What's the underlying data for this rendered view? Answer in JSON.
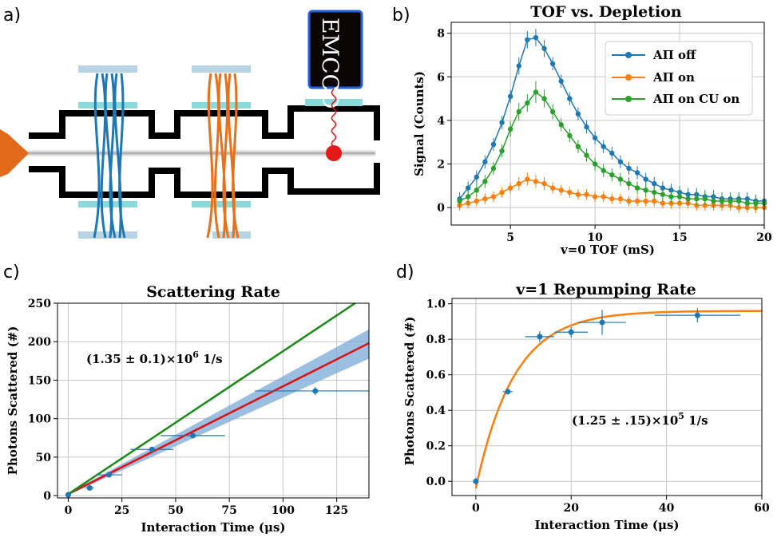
{
  "panels": {
    "a": "a)",
    "b": "b)",
    "c": "c)",
    "d": "d)"
  },
  "diagram": {
    "detector_label": "EMCCD",
    "colors": {
      "blue_beam": "#1f77b4",
      "orange_beam": "#e8701a",
      "red_atom": "#dd1111",
      "mount": "#b8d4e3",
      "cyan_window": "#8ad9db",
      "source_arrow": "#e06a1a"
    }
  },
  "chart_data": [
    {
      "id": "b",
      "type": "line",
      "title": "TOF vs. Depletion",
      "xlabel": "v=0 TOF (mS)",
      "ylabel": "Signal (Counts)",
      "xlim": [
        1.5,
        20
      ],
      "ylim": [
        -0.8,
        8.5
      ],
      "xticks": [
        5,
        10,
        15,
        20
      ],
      "yticks": [
        0,
        2,
        4,
        6,
        8
      ],
      "grid": true,
      "legend_position": "top-right",
      "series": [
        {
          "name": "AΠ off",
          "color": "#1f77b4",
          "x": [
            2.0,
            2.5,
            3.0,
            3.5,
            4.0,
            4.5,
            5.0,
            5.5,
            6.0,
            6.5,
            7.0,
            7.5,
            8.0,
            8.5,
            9.0,
            9.5,
            10.0,
            10.5,
            11.0,
            11.5,
            12.0,
            12.5,
            13.0,
            13.5,
            14.0,
            14.5,
            15.0,
            15.5,
            16.0,
            16.5,
            17.0,
            17.5,
            18.0,
            18.5,
            19.0,
            19.5,
            20.0
          ],
          "y": [
            0.4,
            0.9,
            1.4,
            2.1,
            2.9,
            3.9,
            5.1,
            6.5,
            7.7,
            7.8,
            7.3,
            6.6,
            5.8,
            5.0,
            4.3,
            3.7,
            3.2,
            2.8,
            2.5,
            2.1,
            1.8,
            1.6,
            1.3,
            1.1,
            0.9,
            0.8,
            0.7,
            0.6,
            0.6,
            0.5,
            0.5,
            0.4,
            0.4,
            0.4,
            0.4,
            0.3,
            0.3
          ],
          "err": [
            0.3,
            0.3,
            0.3,
            0.3,
            0.3,
            0.3,
            0.3,
            0.4,
            0.4,
            0.4,
            0.4,
            0.3,
            0.3,
            0.3,
            0.3,
            0.3,
            0.3,
            0.3,
            0.3,
            0.3,
            0.3,
            0.3,
            0.3,
            0.3,
            0.3,
            0.3,
            0.3,
            0.3,
            0.3,
            0.3,
            0.3,
            0.3,
            0.3,
            0.3,
            0.3,
            0.3,
            0.3
          ]
        },
        {
          "name": "AΠ on",
          "color": "#ff7f0e",
          "x": [
            2.0,
            2.5,
            3.0,
            3.5,
            4.0,
            4.5,
            5.0,
            5.5,
            6.0,
            6.5,
            7.0,
            7.5,
            8.0,
            8.5,
            9.0,
            9.5,
            10.0,
            10.5,
            11.0,
            11.5,
            12.0,
            12.5,
            13.0,
            13.5,
            14.0,
            14.5,
            15.0,
            15.5,
            16.0,
            16.5,
            17.0,
            17.5,
            18.0,
            18.5,
            19.0,
            19.5,
            20.0
          ],
          "y": [
            0.1,
            0.2,
            0.3,
            0.4,
            0.5,
            0.7,
            0.9,
            1.1,
            1.3,
            1.2,
            1.1,
            0.9,
            0.8,
            0.7,
            0.6,
            0.6,
            0.5,
            0.5,
            0.4,
            0.4,
            0.3,
            0.3,
            0.3,
            0.3,
            0.2,
            0.2,
            0.2,
            0.2,
            0.1,
            0.1,
            0.1,
            0.1,
            0.1,
            0.0,
            0.0,
            0.0,
            0.0
          ],
          "err": [
            0.25,
            0.25,
            0.25,
            0.25,
            0.25,
            0.25,
            0.25,
            0.3,
            0.3,
            0.3,
            0.3,
            0.25,
            0.25,
            0.25,
            0.25,
            0.25,
            0.25,
            0.25,
            0.25,
            0.25,
            0.25,
            0.25,
            0.25,
            0.25,
            0.25,
            0.25,
            0.25,
            0.25,
            0.25,
            0.25,
            0.25,
            0.25,
            0.25,
            0.25,
            0.25,
            0.25,
            0.25
          ]
        },
        {
          "name": "AΠ on CU on",
          "color": "#2ca02c",
          "x": [
            2.0,
            2.5,
            3.0,
            3.5,
            4.0,
            4.5,
            5.0,
            5.5,
            6.0,
            6.5,
            7.0,
            7.5,
            8.0,
            8.5,
            9.0,
            9.5,
            10.0,
            10.5,
            11.0,
            11.5,
            12.0,
            12.5,
            13.0,
            13.5,
            14.0,
            14.5,
            15.0,
            15.5,
            16.0,
            16.5,
            17.0,
            17.5,
            18.0,
            18.5,
            19.0,
            19.5,
            20.0
          ],
          "y": [
            0.3,
            0.5,
            0.8,
            1.2,
            1.8,
            2.6,
            3.6,
            4.4,
            4.8,
            5.3,
            5.0,
            4.4,
            3.8,
            3.3,
            2.8,
            2.4,
            2.0,
            1.7,
            1.5,
            1.3,
            1.1,
            0.9,
            0.8,
            0.7,
            0.6,
            0.5,
            0.5,
            0.4,
            0.4,
            0.4,
            0.3,
            0.3,
            0.3,
            0.3,
            0.2,
            0.2,
            0.2
          ],
          "err": [
            0.3,
            0.3,
            0.3,
            0.3,
            0.3,
            0.3,
            0.35,
            0.4,
            0.4,
            0.5,
            0.4,
            0.35,
            0.3,
            0.3,
            0.3,
            0.3,
            0.3,
            0.3,
            0.3,
            0.3,
            0.3,
            0.3,
            0.3,
            0.3,
            0.3,
            0.3,
            0.3,
            0.3,
            0.3,
            0.3,
            0.3,
            0.3,
            0.3,
            0.3,
            0.3,
            0.3,
            0.3
          ]
        }
      ]
    },
    {
      "id": "c",
      "type": "scatter",
      "title": "Scattering Rate",
      "xlabel": "Interaction Time (μs)",
      "ylabel": "Photons Scattered (#)",
      "xlim": [
        -5,
        140
      ],
      "ylim": [
        -3,
        250
      ],
      "xticks": [
        0,
        25,
        50,
        75,
        100,
        125
      ],
      "yticks": [
        0,
        50,
        100,
        150,
        200,
        250
      ],
      "grid": true,
      "annotation": {
        "prefix": "(1.35 ± 0.1)×10",
        "exp": "6",
        "suffix": "  1/s"
      },
      "points": {
        "color": "#1f77b4",
        "x": [
          0,
          10,
          19,
          39,
          58,
          115
        ],
        "y": [
          1,
          10,
          27,
          60,
          78,
          136
        ],
        "xerr": [
          0,
          2,
          6,
          10,
          15,
          28
        ],
        "yerr": [
          2,
          2,
          3,
          3,
          3,
          5
        ]
      },
      "fits": [
        {
          "name": "fit",
          "color": "#dd1111",
          "x": [
            0,
            140
          ],
          "y": [
            2,
            198
          ]
        },
        {
          "name": "upper",
          "color": "#1a8a1a",
          "x": [
            0,
            140
          ],
          "y": [
            2,
            262
          ]
        }
      ],
      "band": {
        "color": "#7aaad6",
        "x": [
          0,
          140
        ],
        "y_low": [
          1,
          178
        ],
        "y_high": [
          3,
          216
        ]
      }
    },
    {
      "id": "d",
      "type": "scatter",
      "title": "v=1 Repumping Rate",
      "xlabel": "Interaction Time (μs)",
      "ylabel": "Photons Scattered (#)",
      "xlim": [
        -5,
        60
      ],
      "ylim": [
        -0.08,
        1.03
      ],
      "xticks": [
        0,
        20,
        40,
        60
      ],
      "yticks": [
        0.0,
        0.2,
        0.4,
        0.6,
        0.8,
        1.0
      ],
      "ytick_labels": [
        "0.0",
        "0.2",
        "0.4",
        "0.6",
        "0.8",
        "1.0"
      ],
      "grid": true,
      "annotation": {
        "prefix": "(1.25 ± .15)×10",
        "exp": "5",
        "suffix": " 1/s"
      },
      "points": {
        "color": "#1f77b4",
        "x": [
          0,
          6.7,
          13.4,
          20,
          26.5,
          46.5
        ],
        "y": [
          0.0,
          0.505,
          0.815,
          0.84,
          0.895,
          0.935
        ],
        "xerr": [
          0,
          1,
          3,
          3.5,
          5,
          9
        ],
        "yerr": [
          0.02,
          0.015,
          0.03,
          0.03,
          0.07,
          0.04
        ]
      },
      "fit": {
        "color": "#ff7f0e",
        "asymptote": 0.96,
        "rate_per_us": 0.125,
        "offset": -0.04,
        "x_start": 0,
        "x_end": 60
      }
    }
  ]
}
